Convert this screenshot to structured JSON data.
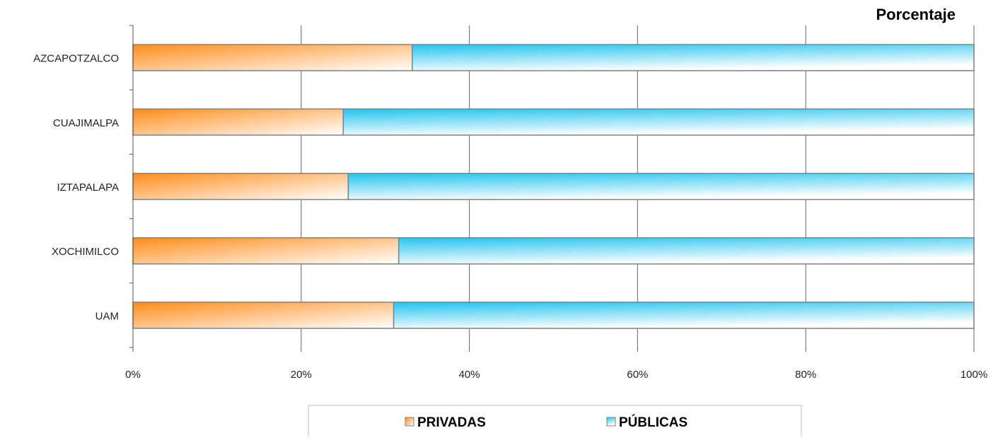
{
  "chart_data": {
    "type": "bar",
    "orientation": "horizontal",
    "stacked": "percent",
    "title": "Porcentaje",
    "categories": [
      "AZCAPOTZALCO",
      "CUAJIMALPA",
      "IZTAPALAPA",
      "XOCHIMILCO",
      "UAM"
    ],
    "series": [
      {
        "name": "PRIVADAS",
        "values": [
          33.2,
          25.0,
          25.6,
          31.6,
          31.0
        ],
        "color": "#ff8c1a"
      },
      {
        "name": "PÚBLICAS",
        "values": [
          66.8,
          75.0,
          74.4,
          68.4,
          69.0
        ],
        "color": "#22c4f0"
      }
    ],
    "xlim": [
      0,
      100
    ],
    "x_ticks": [
      "0%",
      "20%",
      "40%",
      "60%",
      "80%",
      "100%"
    ],
    "grid": true,
    "legend_position": "bottom"
  }
}
